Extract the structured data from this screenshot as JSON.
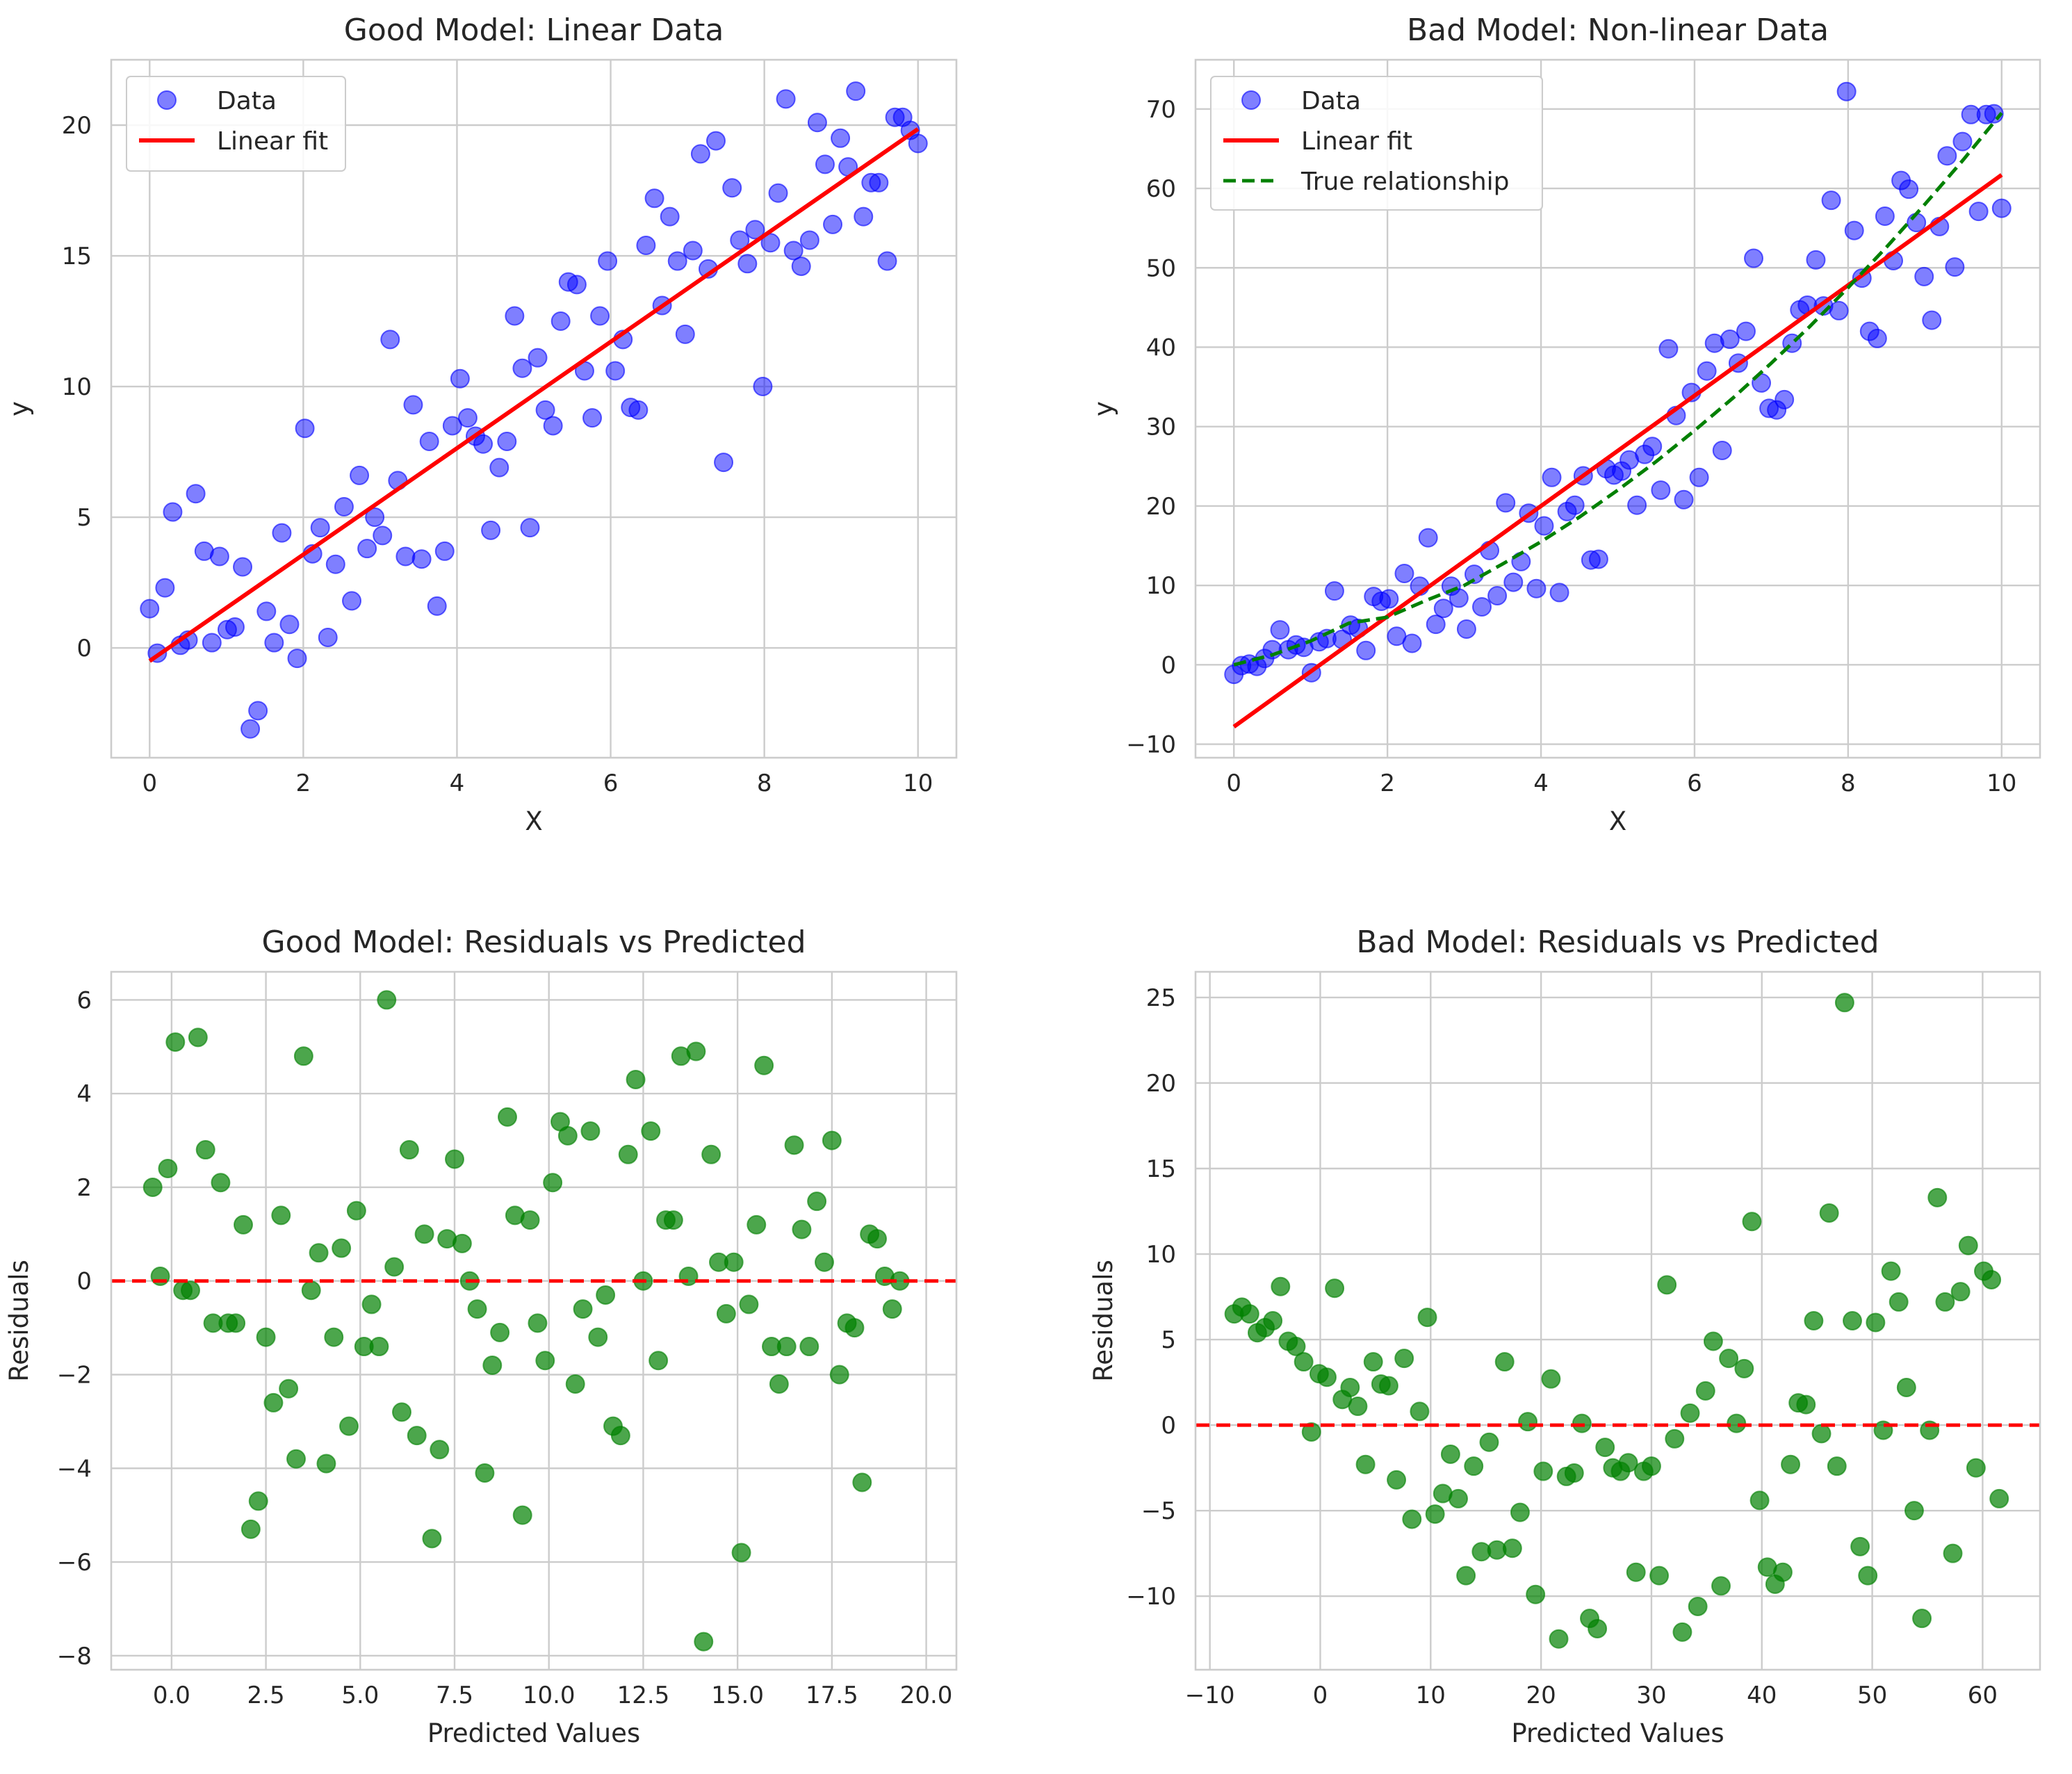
{
  "colors": {
    "data_points": "#0000ff",
    "linear_fit": "#ff0000",
    "true_relationship": "#008000",
    "residual_points": "#008000",
    "zero_line": "#ff0000"
  },
  "chart_data": [
    {
      "type": "scatter",
      "title": "Good Model: Linear Data",
      "xlabel": "X",
      "ylabel": "y",
      "xlim": [
        -0.5,
        10.5
      ],
      "ylim": [
        -4.2,
        22.5
      ],
      "xticks": [
        0,
        2,
        4,
        6,
        8,
        10
      ],
      "xtick_labels": [
        "0",
        "2",
        "4",
        "6",
        "8",
        "10"
      ],
      "yticks": [
        0,
        5,
        10,
        15,
        20
      ],
      "ytick_labels": [
        "0",
        "5",
        "10",
        "15",
        "20"
      ],
      "grid": true,
      "legend": {
        "placement": "upper-left",
        "entries": [
          "Data",
          "Linear fit"
        ]
      },
      "series": [
        {
          "name": "Data",
          "kind": "scatter",
          "color": "#0000ff",
          "x": [
            0,
            0.1,
            0.2,
            0.3,
            0.4,
            0.5,
            0.6,
            0.71,
            0.81,
            0.91,
            1.01,
            1.11,
            1.21,
            1.31,
            1.41,
            1.52,
            1.62,
            1.72,
            1.82,
            1.92,
            2.02,
            2.12,
            2.22,
            2.32,
            2.42,
            2.53,
            2.63,
            2.73,
            2.83,
            2.93,
            3.03,
            3.13,
            3.23,
            3.33,
            3.43,
            3.54,
            3.64,
            3.74,
            3.84,
            3.94,
            4.04,
            4.14,
            4.24,
            4.34,
            4.44,
            4.55,
            4.65,
            4.75,
            4.85,
            4.95,
            5.05,
            5.15,
            5.25,
            5.35,
            5.45,
            5.56,
            5.66,
            5.76,
            5.86,
            5.96,
            6.06,
            6.16,
            6.26,
            6.36,
            6.46,
            6.57,
            6.67,
            6.77,
            6.87,
            6.97,
            7.07,
            7.17,
            7.27,
            7.37,
            7.47,
            7.58,
            7.68,
            7.78,
            7.88,
            7.98,
            8.08,
            8.18,
            8.28,
            8.38,
            8.48,
            8.59,
            8.69,
            8.79,
            8.89,
            8.99,
            9.09,
            9.19,
            9.29,
            9.39,
            9.49,
            9.6,
            9.7,
            9.8,
            9.9,
            10
          ],
          "y": [
            1.5,
            -0.2,
            2.3,
            5.2,
            0.1,
            0.3,
            5.9,
            3.7,
            0.2,
            3.5,
            0.7,
            0.8,
            3.1,
            -3.1,
            -2.4,
            1.4,
            0.2,
            4.4,
            0.9,
            -0.4,
            8.4,
            3.6,
            4.6,
            0.4,
            3.2,
            5.4,
            1.8,
            6.6,
            3.8,
            5,
            4.3,
            11.8,
            6.4,
            3.5,
            9.3,
            3.4,
            7.9,
            1.6,
            3.7,
            8.5,
            10.3,
            8.8,
            8.1,
            7.8,
            4.5,
            6.9,
            7.9,
            12.7,
            10.7,
            4.6,
            11.1,
            9.1,
            8.5,
            12.5,
            14,
            13.9,
            10.6,
            8.8,
            12.7,
            14.8,
            10.6,
            11.8,
            9.2,
            9.1,
            15.4,
            17.2,
            13.1,
            16.5,
            14.8,
            12,
            15.2,
            18.9,
            14.5,
            19.4,
            7.1,
            17.6,
            15.6,
            14.7,
            16,
            10,
            15.5,
            17.4,
            21,
            15.2,
            14.6,
            15.6,
            20.1,
            18.5,
            16.2,
            19.5,
            18.4,
            21.3,
            16.5,
            17.8,
            17.8,
            14.8,
            20.3,
            20.3,
            19.8,
            19.3
          ]
        },
        {
          "name": "Linear fit",
          "kind": "line",
          "color": "#ff0000",
          "x": [
            0,
            10
          ],
          "y": [
            -0.5,
            19.85
          ]
        }
      ]
    },
    {
      "type": "scatter",
      "title": "Bad Model: Non-linear Data",
      "xlabel": "X",
      "ylabel": "y",
      "xlim": [
        -0.5,
        10.5
      ],
      "ylim": [
        -11.7,
        76.2
      ],
      "xticks": [
        0,
        2,
        4,
        6,
        8,
        10
      ],
      "xtick_labels": [
        "0",
        "2",
        "4",
        "6",
        "8",
        "10"
      ],
      "yticks": [
        -10,
        0,
        10,
        20,
        30,
        40,
        50,
        60,
        70
      ],
      "ytick_labels": [
        "−10",
        "0",
        "10",
        "20",
        "30",
        "40",
        "50",
        "60",
        "70"
      ],
      "grid": true,
      "legend": {
        "placement": "upper-left",
        "entries": [
          "Data",
          "Linear fit",
          "True relationship"
        ]
      },
      "series": [
        {
          "name": "Data",
          "kind": "scatter",
          "color": "#0000ff",
          "x": [
            0,
            0.1,
            0.2,
            0.3,
            0.4,
            0.5,
            0.6,
            0.71,
            0.81,
            0.91,
            1.01,
            1.11,
            1.21,
            1.31,
            1.41,
            1.52,
            1.62,
            1.72,
            1.82,
            1.92,
            2.02,
            2.12,
            2.22,
            2.32,
            2.42,
            2.53,
            2.63,
            2.73,
            2.83,
            2.93,
            3.03,
            3.13,
            3.23,
            3.33,
            3.43,
            3.54,
            3.64,
            3.74,
            3.84,
            3.94,
            4.04,
            4.14,
            4.24,
            4.34,
            4.44,
            4.55,
            4.65,
            4.75,
            4.85,
            4.95,
            5.05,
            5.15,
            5.25,
            5.35,
            5.45,
            5.56,
            5.66,
            5.76,
            5.86,
            5.96,
            6.06,
            6.16,
            6.26,
            6.36,
            6.46,
            6.57,
            6.67,
            6.77,
            6.87,
            6.97,
            7.07,
            7.17,
            7.27,
            7.37,
            7.47,
            7.58,
            7.68,
            7.78,
            7.88,
            7.98,
            8.08,
            8.18,
            8.28,
            8.38,
            8.48,
            8.59,
            8.69,
            8.79,
            8.89,
            8.99,
            9.09,
            9.19,
            9.29,
            9.39,
            9.49,
            9.6,
            9.7,
            9.8,
            9.9,
            10
          ],
          "y": [
            -1.2,
            -0.1,
            0.1,
            -0.2,
            0.8,
            1.9,
            4.4,
            1.9,
            2.5,
            2.2,
            -1,
            2.9,
            3.3,
            9.3,
            3.2,
            5,
            4.6,
            1.8,
            8.6,
            8,
            8.3,
            3.6,
            11.5,
            2.7,
            9.9,
            16,
            5.1,
            7.1,
            9.9,
            8.4,
            4.5,
            11.4,
            7.3,
            14.4,
            8.7,
            20.4,
            10.4,
            13,
            19.1,
            9.6,
            17.5,
            23.6,
            9.1,
            19.3,
            20.1,
            23.8,
            13.2,
            13.3,
            24.7,
            23.9,
            24.4,
            25.8,
            20.1,
            26.5,
            27.5,
            22,
            39.8,
            31.4,
            20.8,
            34.3,
            23.6,
            37,
            40.5,
            27,
            41,
            38,
            42,
            51.2,
            35.5,
            32.3,
            32.1,
            33.4,
            40.5,
            44.7,
            45.3,
            51,
            45.2,
            58.5,
            44.6,
            72.2,
            54.7,
            48.7,
            42,
            41.1,
            56.5,
            50.9,
            61,
            59.9,
            55.7,
            48.9,
            43.4,
            55.2,
            64.1,
            50.1,
            65.9,
            69.3,
            57.1,
            69.3,
            69.4,
            57.5
          ]
        },
        {
          "name": "Linear fit",
          "kind": "line",
          "color": "#ff0000",
          "x": [
            0,
            10
          ],
          "y": [
            -7.8,
            61.7
          ]
        },
        {
          "name": "True relationship",
          "kind": "dashed-line",
          "color": "#008000",
          "x": [
            0,
            0.5,
            1,
            1.5,
            2,
            2.5,
            3,
            3.5,
            4,
            4.5,
            5,
            5.5,
            6,
            6.5,
            7,
            7.5,
            8,
            8.5,
            9,
            9.5,
            10
          ],
          "y": [
            0,
            1.25,
            3,
            5.25,
            6,
            8.1,
            10,
            12.7,
            15.5,
            18.6,
            22,
            25.6,
            29.5,
            33.6,
            38,
            42.6,
            47.5,
            52.6,
            58,
            63.6,
            69.5
          ]
        }
      ]
    },
    {
      "type": "scatter",
      "title": "Good Model: Residuals vs Predicted",
      "xlabel": "Predicted Values",
      "ylabel": "Residuals",
      "xlim": [
        -1.6,
        20.8
      ],
      "ylim": [
        -8.3,
        6.6
      ],
      "xticks": [
        0,
        2.5,
        5,
        7.5,
        10,
        12.5,
        15,
        17.5,
        20
      ],
      "xtick_labels": [
        "0.0",
        "2.5",
        "5.0",
        "7.5",
        "10.0",
        "12.5",
        "15.0",
        "17.5",
        "20.0"
      ],
      "yticks": [
        -8,
        -6,
        -4,
        -2,
        0,
        2,
        4,
        6
      ],
      "ytick_labels": [
        "−8",
        "−6",
        "−4",
        "−2",
        "0",
        "2",
        "4",
        "6"
      ],
      "grid": true,
      "reference_line": {
        "y": 0,
        "style": "dashed",
        "color": "#ff0000"
      },
      "series": [
        {
          "name": "",
          "kind": "scatter",
          "color": "#008000",
          "x": [
            -0.5,
            -0.3,
            -0.1,
            0.1,
            0.3,
            0.5,
            0.7,
            0.9,
            1.1,
            1.3,
            1.5,
            1.7,
            1.9,
            2.1,
            2.3,
            2.5,
            2.7,
            2.9,
            3.1,
            3.3,
            3.5,
            3.7,
            3.9,
            4.1,
            4.3,
            4.5,
            4.7,
            4.9,
            5.1,
            5.3,
            5.5,
            5.7,
            5.9,
            6.1,
            6.3,
            6.5,
            6.7,
            6.9,
            7.1,
            7.3,
            7.5,
            7.7,
            7.9,
            8.1,
            8.3,
            8.5,
            8.7,
            8.9,
            9.1,
            9.3,
            9.5,
            9.7,
            9.9,
            10.1,
            10.3,
            10.5,
            10.7,
            10.9,
            11.1,
            11.3,
            11.5,
            11.7,
            11.9,
            12.1,
            12.3,
            12.5,
            12.7,
            12.9,
            13.1,
            13.3,
            13.5,
            13.7,
            13.9,
            14.1,
            14.3,
            14.5,
            14.7,
            14.9,
            15.1,
            15.3,
            15.5,
            15.7,
            15.9,
            16.1,
            16.3,
            16.5,
            16.7,
            16.9,
            17.1,
            17.3,
            17.5,
            17.7,
            17.9,
            18.1,
            18.3,
            18.5,
            18.7,
            18.9,
            19.1,
            19.3
          ],
          "y": [
            2,
            0.1,
            2.4,
            5.1,
            -0.2,
            -0.2,
            5.2,
            2.8,
            -0.9,
            2.1,
            -0.9,
            -0.9,
            1.2,
            -5.3,
            -4.7,
            -1.2,
            -2.6,
            1.4,
            -2.3,
            -3.8,
            4.8,
            -0.2,
            0.6,
            -3.9,
            -1.2,
            0.7,
            -3.1,
            1.5,
            -1.4,
            -0.5,
            -1.4,
            6,
            0.3,
            -2.8,
            2.8,
            -3.3,
            1,
            -5.5,
            -3.6,
            0.9,
            2.6,
            0.8,
            0,
            -0.6,
            -4.1,
            -1.8,
            -1.1,
            3.5,
            1.4,
            -5,
            1.3,
            -0.9,
            -1.7,
            2.1,
            3.4,
            3.1,
            -2.2,
            -0.6,
            3.2,
            -1.2,
            -0.3,
            -3.1,
            -3.3,
            2.7,
            4.3,
            0,
            3.2,
            -1.7,
            1.3,
            1.3,
            4.8,
            0.1,
            4.9,
            -7.7,
            2.7,
            0.4,
            -0.7,
            0.4,
            -5.8,
            -0.5,
            1.2,
            4.6,
            -1.4,
            -2.2,
            -1.4,
            2.9,
            1.1,
            -1.4,
            1.7,
            0.4,
            3,
            -2,
            -0.9,
            -1,
            -4.3,
            1,
            0.9,
            0.1,
            -0.6,
            0
          ]
        }
      ]
    },
    {
      "type": "scatter",
      "title": "Bad Model: Residuals vs Predicted",
      "xlabel": "Predicted Values",
      "ylabel": "Residuals",
      "xlim": [
        -11.3,
        65.2
      ],
      "ylim": [
        -14.3,
        26.5
      ],
      "xticks": [
        -10,
        0,
        10,
        20,
        30,
        40,
        50,
        60
      ],
      "xtick_labels": [
        "−10",
        "0",
        "10",
        "20",
        "30",
        "40",
        "50",
        "60"
      ],
      "yticks": [
        -10,
        -5,
        0,
        5,
        10,
        15,
        20,
        25
      ],
      "ytick_labels": [
        "−10",
        "−5",
        "0",
        "5",
        "10",
        "15",
        "20",
        "25"
      ],
      "grid": true,
      "reference_line": {
        "y": 0,
        "style": "dashed",
        "color": "#ff0000"
      },
      "series": [
        {
          "name": "",
          "kind": "scatter",
          "color": "#008000",
          "x": [
            -7.8,
            -7.1,
            -6.4,
            -5.7,
            -5,
            -4.3,
            -3.6,
            -2.9,
            -2.2,
            -1.5,
            -0.8,
            -0.1,
            0.6,
            1.3,
            2,
            2.7,
            3.4,
            4.1,
            4.8,
            5.5,
            6.2,
            6.9,
            7.6,
            8.3,
            9,
            9.7,
            10.4,
            11.1,
            11.8,
            12.5,
            13.2,
            13.9,
            14.6,
            15.3,
            16,
            16.7,
            17.4,
            18.1,
            18.8,
            19.5,
            20.2,
            20.9,
            21.6,
            22.3,
            23,
            23.7,
            24.4,
            25.1,
            25.8,
            26.5,
            27.2,
            27.9,
            28.6,
            29.3,
            30,
            30.7,
            31.4,
            32.1,
            32.8,
            33.5,
            34.2,
            34.9,
            35.6,
            36.3,
            37,
            37.7,
            38.4,
            39.1,
            39.8,
            40.5,
            41.2,
            41.9,
            42.6,
            43.3,
            44,
            44.7,
            45.4,
            46.1,
            46.8,
            47.5,
            48.2,
            48.9,
            49.6,
            50.3,
            51,
            51.7,
            52.4,
            53.1,
            53.8,
            54.5,
            55.2,
            55.9,
            56.6,
            57.3,
            58,
            58.7,
            59.4,
            60.1,
            60.8,
            61.5
          ],
          "y": [
            6.5,
            6.9,
            6.5,
            5.4,
            5.7,
            6.1,
            8.1,
            4.9,
            4.6,
            3.7,
            -0.4,
            3,
            2.8,
            8,
            1.5,
            2.2,
            1.1,
            -2.3,
            3.7,
            2.4,
            2.3,
            -3.2,
            3.9,
            -5.5,
            0.8,
            6.3,
            -5.2,
            -4,
            -1.7,
            -4.3,
            -8.8,
            -2.4,
            -7.4,
            -1,
            -7.3,
            3.7,
            -7.2,
            -5.1,
            0.2,
            -9.9,
            -2.7,
            2.7,
            -12.5,
            -3,
            -2.8,
            0.1,
            -11.3,
            -11.9,
            -1.3,
            -2.5,
            -2.7,
            -2.2,
            -8.6,
            -2.7,
            -2.4,
            -8.8,
            8.2,
            -0.8,
            -12.1,
            0.7,
            -10.6,
            2,
            4.9,
            -9.4,
            3.9,
            0.1,
            3.3,
            11.9,
            -4.4,
            -8.3,
            -9.3,
            -8.6,
            -2.3,
            1.3,
            1.2,
            6.1,
            -0.5,
            12.4,
            -2.4,
            24.7,
            6.1,
            -7.1,
            -8.8,
            6,
            -0.3,
            9,
            7.2,
            2.2,
            -5,
            -11.3,
            -0.3,
            13.3,
            7.2,
            -7.5,
            7.8,
            10.5,
            -2.5,
            9,
            8.5,
            -4.3
          ]
        }
      ]
    }
  ]
}
